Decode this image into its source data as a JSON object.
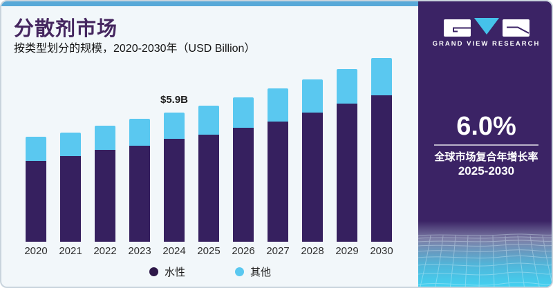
{
  "header": {
    "title": "分散剂市场",
    "subtitle": "按类型划分的规模，2020-2030年（USD Billion）"
  },
  "sidebar": {
    "brand_name": "GRAND VIEW RESEARCH",
    "logo_letters": [
      "G",
      "V",
      "R"
    ],
    "cagr_value": "6.0%",
    "cagr_label": "全球市场复合年增长率",
    "cagr_period": "2025-2030"
  },
  "colors": {
    "accent_strip": "#58a9d8",
    "sidebar_background": "#3b2365",
    "title_text": "#45265f",
    "panel_background": "#f2f7fa",
    "logo_triangle": "#45c2ea"
  },
  "chart_data": {
    "type": "bar",
    "stacked": true,
    "title": "分散剂市场",
    "subtitle": "按类型划分的规模，2020-2030年（USD Billion）",
    "unit": "USD Billion",
    "xlabel": "",
    "ylabel": "",
    "ylim": [
      0,
      8.8
    ],
    "grid": false,
    "legend_position": "bottom",
    "categories": [
      "2020",
      "2021",
      "2022",
      "2023",
      "2024",
      "2025",
      "2026",
      "2027",
      "2028",
      "2029",
      "2030"
    ],
    "series": [
      {
        "name": "水性",
        "color": "#36205f",
        "legend_dot_color": "#2d1748",
        "values": [
          3.7,
          3.9,
          4.2,
          4.4,
          4.7,
          4.9,
          5.2,
          5.5,
          5.9,
          6.3,
          6.7
        ]
      },
      {
        "name": "其他",
        "color": "#5ac8f0",
        "legend_dot_color": "#5ac8f0",
        "values": [
          1.1,
          1.1,
          1.1,
          1.2,
          1.2,
          1.3,
          1.4,
          1.5,
          1.5,
          1.6,
          1.7
        ]
      }
    ],
    "totals": [
      4.8,
      5.0,
      5.3,
      5.6,
      5.9,
      6.2,
      6.6,
      7.0,
      7.4,
      7.9,
      8.4
    ],
    "annotation": {
      "category": "2024",
      "text": "$5.9B"
    }
  }
}
